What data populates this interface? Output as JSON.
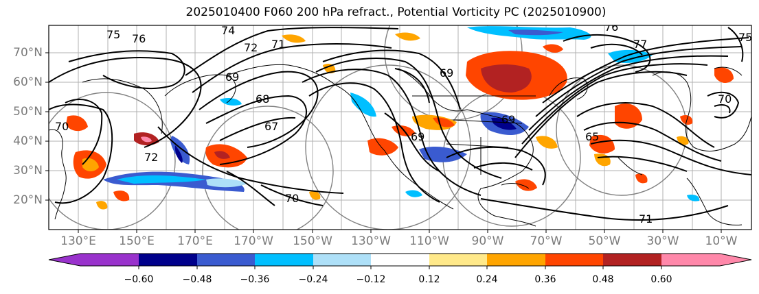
{
  "title": "2025010400 F060 200 hPa refract., Potential Vorticity PC (2025010900)",
  "latitude_labels": [
    "70°N",
    "60°N",
    "50°N",
    "40°N",
    "30°N",
    "20°N"
  ],
  "longitude_labels": [
    "130°E",
    "150°E",
    "170°E",
    "170°W",
    "150°W",
    "130°W",
    "110°W",
    "90°W",
    "70°W",
    "50°W",
    "30°W",
    "10°W"
  ],
  "colorbar": {
    "ticks": [
      "−0.60",
      "−0.48",
      "−0.36",
      "−0.24",
      "−0.12",
      "0.12",
      "0.24",
      "0.36",
      "0.48",
      "0.60"
    ],
    "colors": [
      "#9932cc",
      "#00008b",
      "#3a5bd0",
      "#00bfff",
      "#aee0f8",
      "#ffffff",
      "#ffe98a",
      "#ffa500",
      "#ff4500",
      "#b22222",
      "#ff88aa"
    ]
  },
  "contour_labels": [
    "75",
    "76",
    "74",
    "72",
    "71",
    "76",
    "77",
    "75",
    "69",
    "68",
    "67",
    "70",
    "72",
    "70",
    "69",
    "69",
    "69",
    "65",
    "70",
    "71"
  ],
  "colors": {
    "grid": "#b0b0b0",
    "coast": "#000000",
    "contour": "#000000",
    "circle": "#808080",
    "axis_label": "#7a7a7a"
  }
}
